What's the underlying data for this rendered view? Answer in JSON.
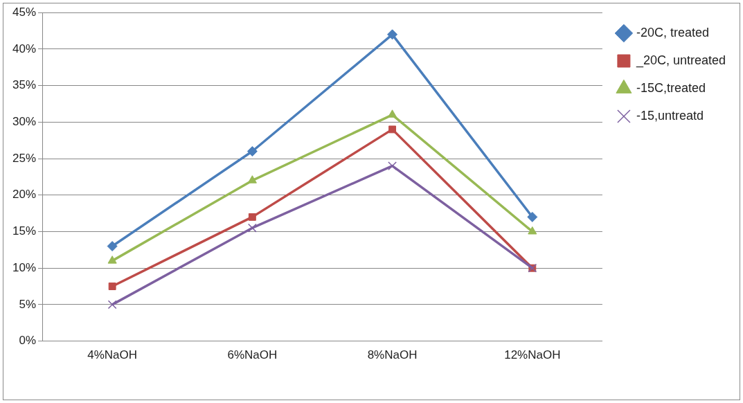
{
  "chart_data": {
    "type": "line",
    "categories": [
      "4%NaOH",
      "6%NaOH",
      "8%NaOH",
      "12%NaOH"
    ],
    "series": [
      {
        "name": "-20C, treated",
        "color": "#4a7ebb",
        "marker": "diamond",
        "values": [
          13,
          26,
          42,
          17
        ]
      },
      {
        "name": "_20C, untreated",
        "color": "#be4b48",
        "marker": "square",
        "values": [
          7.5,
          17,
          29,
          10
        ]
      },
      {
        "name": "-15C,treated",
        "color": "#98b954",
        "marker": "triangle",
        "values": [
          11,
          22,
          31,
          15
        ]
      },
      {
        "name": "-15,untreatd",
        "color": "#7d60a0",
        "marker": "cross",
        "values": [
          5,
          15.5,
          24,
          10
        ]
      }
    ],
    "ylim": [
      0,
      45
    ],
    "yticks": [
      {
        "value": 0,
        "label": "0%"
      },
      {
        "value": 5,
        "label": "5%"
      },
      {
        "value": 10,
        "label": "10%"
      },
      {
        "value": 15,
        "label": "15%"
      },
      {
        "value": 20,
        "label": "20%"
      },
      {
        "value": 25,
        "label": "25%"
      },
      {
        "value": 30,
        "label": "30%"
      },
      {
        "value": 35,
        "label": "35%"
      },
      {
        "value": 40,
        "label": "40%"
      },
      {
        "value": 45,
        "label": "45%"
      }
    ],
    "grid": "y",
    "legend": "top right",
    "line_style": "solid"
  }
}
